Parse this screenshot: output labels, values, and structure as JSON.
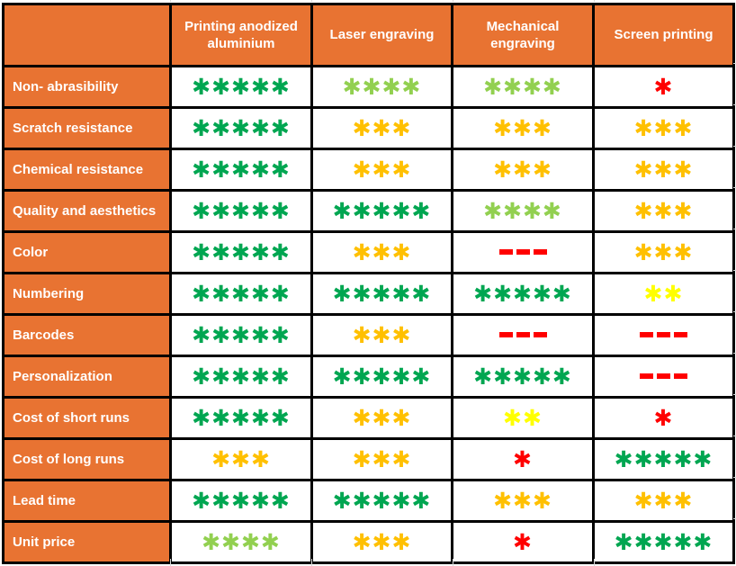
{
  "chart_data": {
    "type": "table",
    "title": "",
    "corner_label": "",
    "columns": [
      "Printing anodized aluminium",
      "Laser engraving",
      "Mechanical engraving",
      "Screen printing"
    ],
    "rows": [
      {
        "label": "Non- abrasibility",
        "cells": [
          {
            "rating": 5,
            "color": "green"
          },
          {
            "rating": 4,
            "color": "light_green"
          },
          {
            "rating": 4,
            "color": "light_green"
          },
          {
            "rating": 1,
            "color": "red"
          }
        ]
      },
      {
        "label": "Scratch resistance",
        "cells": [
          {
            "rating": 5,
            "color": "green"
          },
          {
            "rating": 3,
            "color": "orange"
          },
          {
            "rating": 3,
            "color": "orange"
          },
          {
            "rating": 3,
            "color": "orange"
          }
        ]
      },
      {
        "label": "Chemical resistance",
        "cells": [
          {
            "rating": 5,
            "color": "green"
          },
          {
            "rating": 3,
            "color": "orange"
          },
          {
            "rating": 3,
            "color": "orange"
          },
          {
            "rating": 3,
            "color": "orange"
          }
        ]
      },
      {
        "label": "Quality and aesthetics",
        "cells": [
          {
            "rating": 5,
            "color": "green"
          },
          {
            "rating": 5,
            "color": "green"
          },
          {
            "rating": 4,
            "color": "light_green"
          },
          {
            "rating": 3,
            "color": "orange"
          }
        ]
      },
      {
        "label": "Color",
        "cells": [
          {
            "rating": 5,
            "color": "green"
          },
          {
            "rating": 3,
            "color": "orange"
          },
          {
            "rating": "none",
            "color": "red"
          },
          {
            "rating": 3,
            "color": "orange"
          }
        ]
      },
      {
        "label": "Numbering",
        "cells": [
          {
            "rating": 5,
            "color": "green"
          },
          {
            "rating": 5,
            "color": "green"
          },
          {
            "rating": 5,
            "color": "green"
          },
          {
            "rating": 2,
            "color": "yellow"
          }
        ]
      },
      {
        "label": "Barcodes",
        "cells": [
          {
            "rating": 5,
            "color": "green"
          },
          {
            "rating": 3,
            "color": "orange"
          },
          {
            "rating": "none",
            "color": "red"
          },
          {
            "rating": "none",
            "color": "red"
          }
        ]
      },
      {
        "label": "Personalization",
        "cells": [
          {
            "rating": 5,
            "color": "green"
          },
          {
            "rating": 5,
            "color": "green"
          },
          {
            "rating": 5,
            "color": "green"
          },
          {
            "rating": "none",
            "color": "red"
          }
        ]
      },
      {
        "label": "Cost of short runs",
        "cells": [
          {
            "rating": 5,
            "color": "green"
          },
          {
            "rating": 3,
            "color": "orange"
          },
          {
            "rating": 2,
            "color": "yellow"
          },
          {
            "rating": 1,
            "color": "red"
          }
        ]
      },
      {
        "label": "Cost of long runs",
        "cells": [
          {
            "rating": 3,
            "color": "orange"
          },
          {
            "rating": 3,
            "color": "orange"
          },
          {
            "rating": 1,
            "color": "red"
          },
          {
            "rating": 5,
            "color": "green"
          }
        ]
      },
      {
        "label": "Lead time",
        "cells": [
          {
            "rating": 5,
            "color": "green"
          },
          {
            "rating": 5,
            "color": "green"
          },
          {
            "rating": 3,
            "color": "orange"
          },
          {
            "rating": 3,
            "color": "orange"
          }
        ]
      },
      {
        "label": "Unit price",
        "cells": [
          {
            "rating": 4,
            "color": "light_green"
          },
          {
            "rating": 3,
            "color": "orange"
          },
          {
            "rating": 1,
            "color": "red"
          },
          {
            "rating": 5,
            "color": "green"
          }
        ]
      }
    ],
    "rating_scale": [
      1,
      5
    ],
    "symbols": {
      "star": "✱",
      "not_available": "---"
    },
    "colors": {
      "header_bg": "#E87332",
      "grid_border": "#000000",
      "cell_bg": "#FFFFFF",
      "header_text": "#FFFFFF",
      "faint_gridline": "#D9D9D9",
      "green": "#00A651",
      "light_green": "#92D050",
      "orange": "#FFC000",
      "yellow": "#FFFF00",
      "red": "#FF0000"
    }
  }
}
